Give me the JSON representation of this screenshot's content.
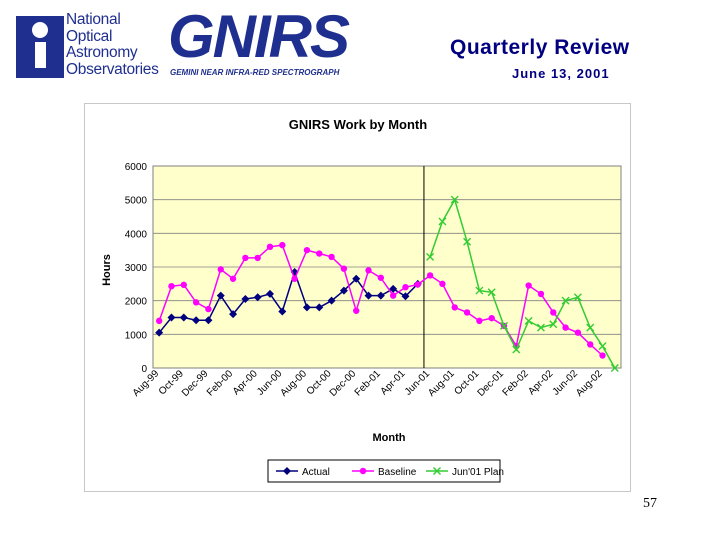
{
  "logos": {
    "noao_lines": [
      "National",
      "Optical",
      "Astronomy",
      "Observatories"
    ],
    "gnirs_word": "GNIRS",
    "gnirs_subtitle": "GEMINI NEAR INFRA-RED SPECTROGRAPH"
  },
  "header": {
    "title": "Quarterly Review",
    "date": "June 13, 2001"
  },
  "page_number": "57",
  "colors": {
    "actual": "#00007f",
    "baseline": "#ff00ff",
    "plan": "#33cc33",
    "plot_background": "#ffffcc",
    "title_text": "#000080"
  },
  "chart_data": {
    "type": "line",
    "title": "GNIRS Work by Month",
    "xlabel": "Month",
    "ylabel": "Hours",
    "ylim": [
      0,
      6000
    ],
    "yticks": [
      "0",
      "1000",
      "2000",
      "3000",
      "4000",
      "5000",
      "6000"
    ],
    "grid": "horizontal",
    "legend_position": "bottom",
    "marker_line_category": "Jun-01",
    "categories": [
      "Aug-99",
      "Sep-99",
      "Oct-99",
      "Nov-99",
      "Dec-99",
      "Jan-00",
      "Feb-00",
      "Mar-00",
      "Apr-00",
      "May-00",
      "Jun-00",
      "Jul-00",
      "Aug-00",
      "Sep-00",
      "Oct-00",
      "Nov-00",
      "Dec-00",
      "Jan-01",
      "Feb-01",
      "Mar-01",
      "Apr-01",
      "May-01",
      "Jun-01",
      "Jul-01",
      "Aug-01",
      "Sep-01",
      "Oct-01",
      "Nov-01",
      "Dec-01",
      "Jan-02",
      "Feb-02",
      "Mar-02",
      "Apr-02",
      "May-02",
      "Jun-02",
      "Jul-02",
      "Aug-02",
      "Sep-02"
    ],
    "tick_labels": [
      "Aug-99",
      "Oct-99",
      "Dec-99",
      "Feb-00",
      "Apr-00",
      "Jun-00",
      "Aug-00",
      "Oct-00",
      "Dec-00",
      "Feb-01",
      "Apr-01",
      "Jun-01",
      "Aug-01",
      "Oct-01",
      "Dec-01",
      "Feb-02",
      "Apr-02",
      "Jun-02",
      "Aug-02"
    ],
    "series": [
      {
        "name": "Actual",
        "marker": "diamond",
        "values": [
          1050,
          1500,
          1500,
          1420,
          1420,
          2150,
          1600,
          2050,
          2100,
          2200,
          1680,
          2850,
          1800,
          1800,
          2000,
          2300,
          2650,
          2150,
          2150,
          2350,
          2130,
          2500,
          null,
          null,
          null,
          null,
          null,
          null,
          null,
          null,
          null,
          null,
          null,
          null,
          null,
          null,
          null,
          null
        ]
      },
      {
        "name": "Baseline",
        "marker": "circle",
        "values": [
          1400,
          2430,
          2470,
          1950,
          1750,
          2930,
          2650,
          3270,
          3270,
          3600,
          3650,
          2650,
          3500,
          3400,
          3300,
          2950,
          1700,
          2900,
          2680,
          2150,
          2400,
          2480,
          2750,
          2500,
          1800,
          1650,
          1400,
          1480,
          1250,
          650,
          2450,
          2200,
          1650,
          1200,
          1050,
          700,
          370,
          null
        ]
      },
      {
        "name": "Jun'01 Plan",
        "marker": "x",
        "values": [
          null,
          null,
          null,
          null,
          null,
          null,
          null,
          null,
          null,
          null,
          null,
          null,
          null,
          null,
          null,
          null,
          null,
          null,
          null,
          null,
          null,
          null,
          3300,
          4350,
          5000,
          3750,
          2300,
          2250,
          1250,
          550,
          1400,
          1200,
          1300,
          2000,
          2100,
          1200,
          650,
          0
        ]
      }
    ]
  }
}
